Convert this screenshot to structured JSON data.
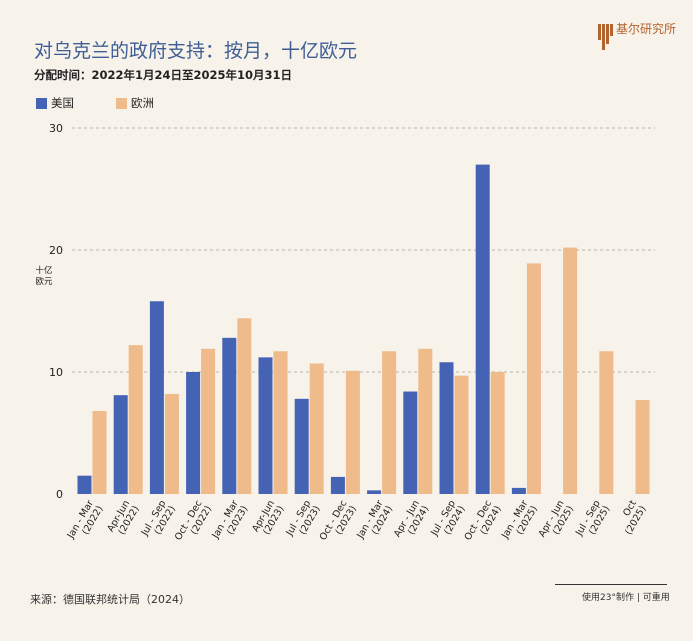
{
  "header": {
    "title": "对乌克兰的政府支持：按月，十亿欧元",
    "subtitle": "分配时间：2022年1月24日至2025年10月31日"
  },
  "logo": {
    "text": "基尔研究所"
  },
  "footer": {
    "source": "来源：德国联邦统计局（2024）",
    "credit": "使用23°制作 | 可重用"
  },
  "colors": {
    "us": "#4563b5",
    "eu": "#efbb8a",
    "background": "#f7f2ea",
    "title": "#3e5e95"
  },
  "chart_data": {
    "type": "bar",
    "title": "对乌克兰的政府支持：按月，十亿欧元",
    "subtitle": "分配时间：2022年1月24日至2025年10月31日",
    "xlabel": "",
    "ylabel": "十亿欧元",
    "ylim": [
      0,
      30
    ],
    "yticks": [
      0,
      10,
      20,
      30
    ],
    "grid": true,
    "legend_position": "top-left",
    "categories": [
      "Jan - Mar (2022)",
      "Apr-Jun (2022)",
      "Jul - Sep (2022)",
      "Oct - Dec (2022)",
      "Jan - Mar (2023)",
      "Apr-Jun (2023)",
      "Jul - Sep (2023)",
      "Oct - Dec (2023)",
      "Jan - Mar (2024)",
      "Apr - Jun (2024)",
      "Jul - Sep (2024)",
      "Oct - Dec (2024)",
      "Jan - Mar (2025)",
      "Apr - Jun (2025)",
      "Jul - Sep (2025)",
      "Oct (2025)"
    ],
    "series": [
      {
        "name": "美国",
        "color": "#4563b5",
        "values": [
          1.5,
          8.1,
          15.8,
          10.0,
          12.8,
          11.2,
          7.8,
          1.4,
          0.3,
          8.4,
          10.8,
          27.0,
          0.5,
          0,
          0,
          0
        ]
      },
      {
        "name": "欧洲",
        "color": "#efbb8a",
        "values": [
          6.8,
          12.2,
          8.2,
          11.9,
          14.4,
          11.7,
          10.7,
          10.1,
          11.7,
          11.9,
          9.7,
          10.0,
          18.9,
          20.2,
          11.7,
          7.7
        ]
      }
    ]
  }
}
